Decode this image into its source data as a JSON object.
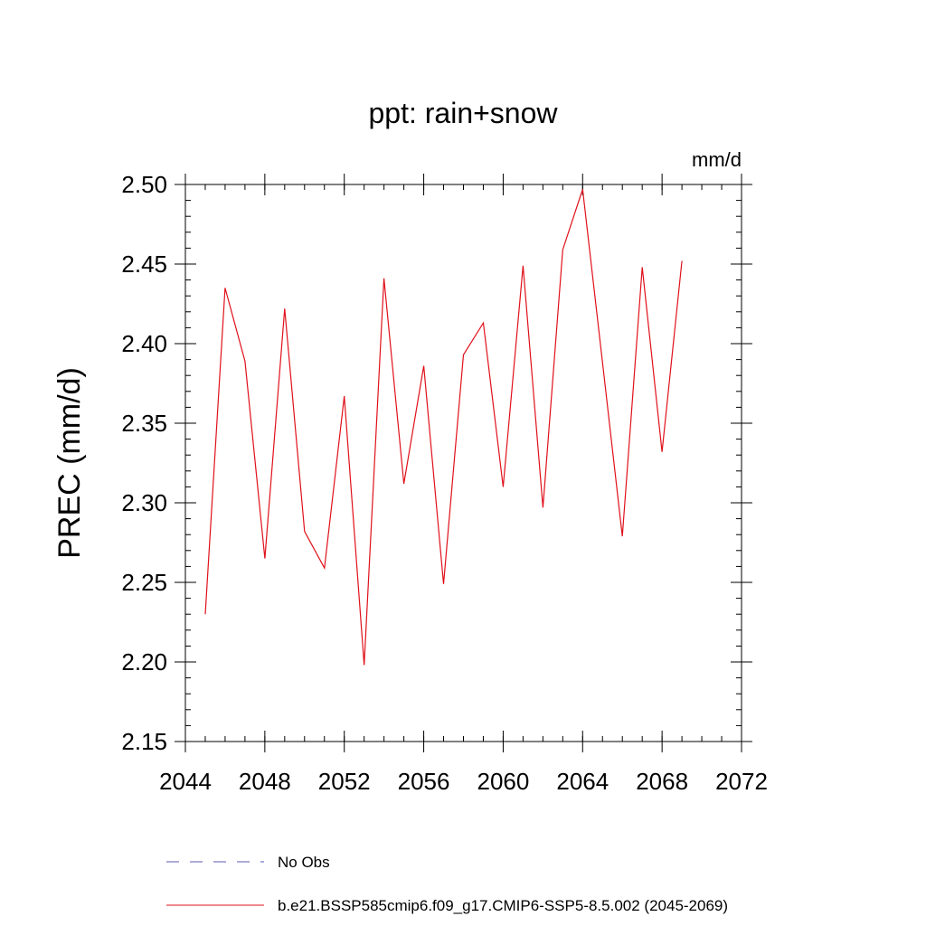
{
  "chart_data": {
    "type": "line",
    "title": "ppt: rain+snow",
    "units_label": "mm/d",
    "ylabel": "PREC  (mm/d)",
    "xlabel": "",
    "xlim": [
      2044,
      2072
    ],
    "ylim": [
      2.15,
      2.5
    ],
    "x_ticks": [
      "2044",
      "2048",
      "2052",
      "2056",
      "2060",
      "2064",
      "2068",
      "2072"
    ],
    "y_ticks": [
      "2.15",
      "2.20",
      "2.25",
      "2.30",
      "2.35",
      "2.40",
      "2.45",
      "2.50"
    ],
    "x": [
      2045,
      2046,
      2047,
      2048,
      2049,
      2050,
      2051,
      2052,
      2053,
      2054,
      2055,
      2056,
      2057,
      2058,
      2059,
      2060,
      2061,
      2062,
      2063,
      2064,
      2065,
      2066,
      2067,
      2068,
      2069
    ],
    "series": [
      {
        "name": "b.e21.BSSP585cmip6.f09_g17.CMIP6-SSP5-8.5.002 (2045-2069)",
        "color": "#e0101a",
        "values": [
          2.23,
          2.435,
          2.389,
          2.265,
          2.422,
          2.282,
          2.259,
          2.367,
          2.198,
          2.441,
          2.312,
          2.386,
          2.249,
          2.393,
          2.413,
          2.31,
          2.449,
          2.297,
          2.459,
          2.497,
          2.388,
          2.279,
          2.448,
          2.332,
          2.452
        ]
      }
    ],
    "legend": [
      {
        "label": "No Obs",
        "style": "dashed",
        "color": "#5a5ab8"
      },
      {
        "label": "b.e21.BSSP585cmip6.f09_g17.CMIP6-SSP5-8.5.002 (2045-2069)",
        "style": "solid",
        "color": "#e0101a"
      }
    ],
    "legend_placement": "bottom",
    "grid": false
  }
}
